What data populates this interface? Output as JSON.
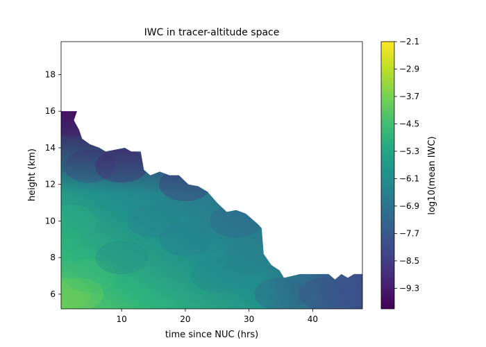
{
  "chart_data": {
    "type": "heatmap",
    "title": "IWC in tracer-altitude space",
    "xlabel": "time since NUC (hrs)",
    "ylabel": "height (km)",
    "xlim": [
      0.5,
      47.8
    ],
    "ylim": [
      5.2,
      19.8
    ],
    "xticks": [
      10,
      20,
      30,
      40
    ],
    "yticks": [
      6,
      8,
      10,
      12,
      14,
      16,
      18
    ],
    "colorbar": {
      "label": "log10(mean IWC)",
      "range": [
        -9.9,
        -2.1
      ],
      "ticks": [
        -2.1,
        -2.9,
        -3.7,
        -4.5,
        -5.3,
        -6.1,
        -6.9,
        -7.7,
        -8.5,
        -9.3
      ],
      "colormap": "viridis"
    },
    "grid": false,
    "upper_boundary": [
      [
        0.5,
        16.0
      ],
      [
        3.0,
        16.0
      ],
      [
        2.5,
        15.5
      ],
      [
        3.3,
        15.0
      ],
      [
        3.8,
        14.5
      ],
      [
        5.0,
        14.2
      ],
      [
        6.5,
        14.0
      ],
      [
        7.5,
        13.8
      ],
      [
        9.0,
        13.9
      ],
      [
        10.5,
        14.0
      ],
      [
        11.5,
        13.8
      ],
      [
        13.0,
        13.8
      ],
      [
        13.5,
        12.8
      ],
      [
        14.5,
        12.5
      ],
      [
        16.0,
        12.7
      ],
      [
        17.5,
        12.5
      ],
      [
        19.0,
        12.5
      ],
      [
        20.5,
        12.0
      ],
      [
        22.0,
        11.9
      ],
      [
        23.5,
        11.6
      ],
      [
        25.0,
        11.0
      ],
      [
        26.5,
        10.5
      ],
      [
        28.0,
        10.6
      ],
      [
        29.5,
        10.4
      ],
      [
        30.5,
        10.1
      ],
      [
        31.5,
        9.8
      ],
      [
        32.0,
        9.6
      ],
      [
        32.3,
        8.2
      ],
      [
        33.5,
        7.6
      ],
      [
        34.8,
        7.3
      ],
      [
        35.5,
        6.9
      ],
      [
        38.0,
        7.1
      ],
      [
        40.5,
        7.1
      ],
      [
        42.5,
        7.1
      ],
      [
        43.5,
        6.8
      ],
      [
        44.5,
        7.1
      ],
      [
        45.5,
        6.9
      ],
      [
        46.5,
        7.1
      ],
      [
        47.8,
        7.1
      ],
      [
        47.8,
        5.2
      ]
    ],
    "field_samples": [
      {
        "x": 1,
        "y": 6,
        "value": -3.8
      },
      {
        "x": 3,
        "y": 6,
        "value": -3.8
      },
      {
        "x": 5,
        "y": 7,
        "value": -4.5
      },
      {
        "x": 2,
        "y": 10,
        "value": -5.0
      },
      {
        "x": 10,
        "y": 8,
        "value": -6.2
      },
      {
        "x": 15,
        "y": 10,
        "value": -6.5
      },
      {
        "x": 20,
        "y": 9,
        "value": -6.6
      },
      {
        "x": 25,
        "y": 7,
        "value": -6.3
      },
      {
        "x": 30,
        "y": 8,
        "value": -6.5
      },
      {
        "x": 35,
        "y": 6,
        "value": -7.5
      },
      {
        "x": 42,
        "y": 6,
        "value": -8.0
      },
      {
        "x": 5,
        "y": 13,
        "value": -8.0
      },
      {
        "x": 10,
        "y": 13,
        "value": -9.0
      },
      {
        "x": 20,
        "y": 12,
        "value": -8.8
      },
      {
        "x": 28,
        "y": 10,
        "value": -7.5
      },
      {
        "x": 2,
        "y": 15.5,
        "value": -8.5
      }
    ]
  }
}
